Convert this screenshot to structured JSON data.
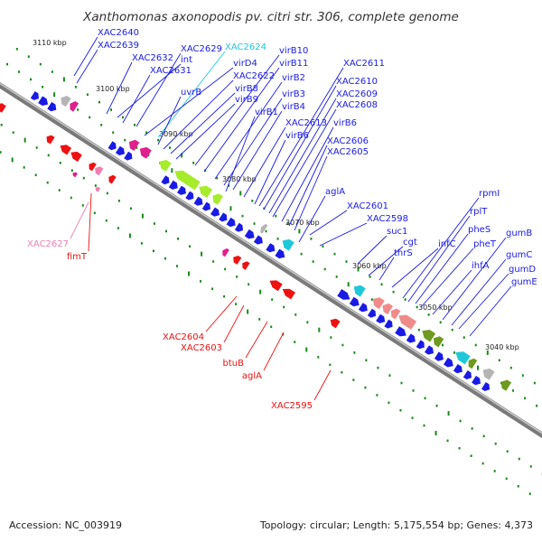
{
  "title": "Xanthomonas axonopodis pv. citri str. 306, complete genome",
  "footer": {
    "accession": "Accession: NC_003919",
    "topology": "Topology: circular; Length: 5,175,554 bp; Genes: 4,373"
  },
  "colors": {
    "blue": "#1a1ae6",
    "red": "#ee1111",
    "magenta": "#e0208f",
    "pink": "#f07fb0",
    "lime": "#a6ec2a",
    "cyan": "#1fc8d8",
    "salmon": "#f08a8a",
    "olive": "#6f9a1f",
    "gray": "#b5b5b5",
    "tick": "#1a8a1a"
  },
  "tick_labels": [
    "3110 kbp",
    "3100 kbp",
    "3090 kbp",
    "3080 kbp",
    "3070 kbp",
    "3060 kbp",
    "3050 kbp",
    "3040 kbp"
  ],
  "labels_upper": [
    {
      "text": "XAC2640",
      "color": "blue"
    },
    {
      "text": "XAC2639",
      "color": "blue"
    },
    {
      "text": "XAC2632",
      "color": "blue"
    },
    {
      "text": "int",
      "color": "blue"
    },
    {
      "text": "XAC2631",
      "color": "blue"
    },
    {
      "text": "XAC2629",
      "color": "blue"
    },
    {
      "text": "XAC2624",
      "color": "cyan"
    },
    {
      "text": "virD4",
      "color": "blue"
    },
    {
      "text": "uvrB",
      "color": "blue"
    },
    {
      "text": "XAC2622",
      "color": "blue"
    },
    {
      "text": "virB8",
      "color": "blue"
    },
    {
      "text": "virB9",
      "color": "blue"
    },
    {
      "text": "virB10",
      "color": "blue"
    },
    {
      "text": "virB11",
      "color": "blue"
    },
    {
      "text": "virB2",
      "color": "blue"
    },
    {
      "text": "virB3",
      "color": "blue"
    },
    {
      "text": "virB4",
      "color": "blue"
    },
    {
      "text": "virB1",
      "color": "blue"
    },
    {
      "text": "XAC2613",
      "color": "blue"
    },
    {
      "text": "virB6",
      "color": "blue"
    },
    {
      "text": "XAC2611",
      "color": "blue"
    },
    {
      "text": "XAC2610",
      "color": "blue"
    },
    {
      "text": "XAC2609",
      "color": "blue"
    },
    {
      "text": "XAC2608",
      "color": "blue"
    },
    {
      "text": "virB6",
      "color": "blue"
    },
    {
      "text": "XAC2606",
      "color": "blue"
    },
    {
      "text": "XAC2605",
      "color": "blue"
    },
    {
      "text": "aglA",
      "color": "blue"
    },
    {
      "text": "XAC2601",
      "color": "blue"
    },
    {
      "text": "XAC2598",
      "color": "blue"
    },
    {
      "text": "suc1",
      "color": "blue"
    },
    {
      "text": "cgt",
      "color": "blue"
    },
    {
      "text": "thrS",
      "color": "blue"
    },
    {
      "text": "infC",
      "color": "blue"
    },
    {
      "text": "rpmI",
      "color": "blue"
    },
    {
      "text": "rplT",
      "color": "blue"
    },
    {
      "text": "pheS",
      "color": "blue"
    },
    {
      "text": "pheT",
      "color": "blue"
    },
    {
      "text": "ihfA",
      "color": "blue"
    },
    {
      "text": "gumB",
      "color": "blue"
    },
    {
      "text": "gumC",
      "color": "blue"
    },
    {
      "text": "gumD",
      "color": "blue"
    },
    {
      "text": "gumE",
      "color": "blue"
    }
  ],
  "labels_lower": [
    {
      "text": "XAC2627",
      "color": "pink"
    },
    {
      "text": "fimT",
      "color": "red"
    },
    {
      "text": "XAC2604",
      "color": "red"
    },
    {
      "text": "XAC2603",
      "color": "red"
    },
    {
      "text": "btuB",
      "color": "red"
    },
    {
      "text": "aglA",
      "color": "red"
    },
    {
      "text": "XAC2595",
      "color": "red"
    }
  ]
}
